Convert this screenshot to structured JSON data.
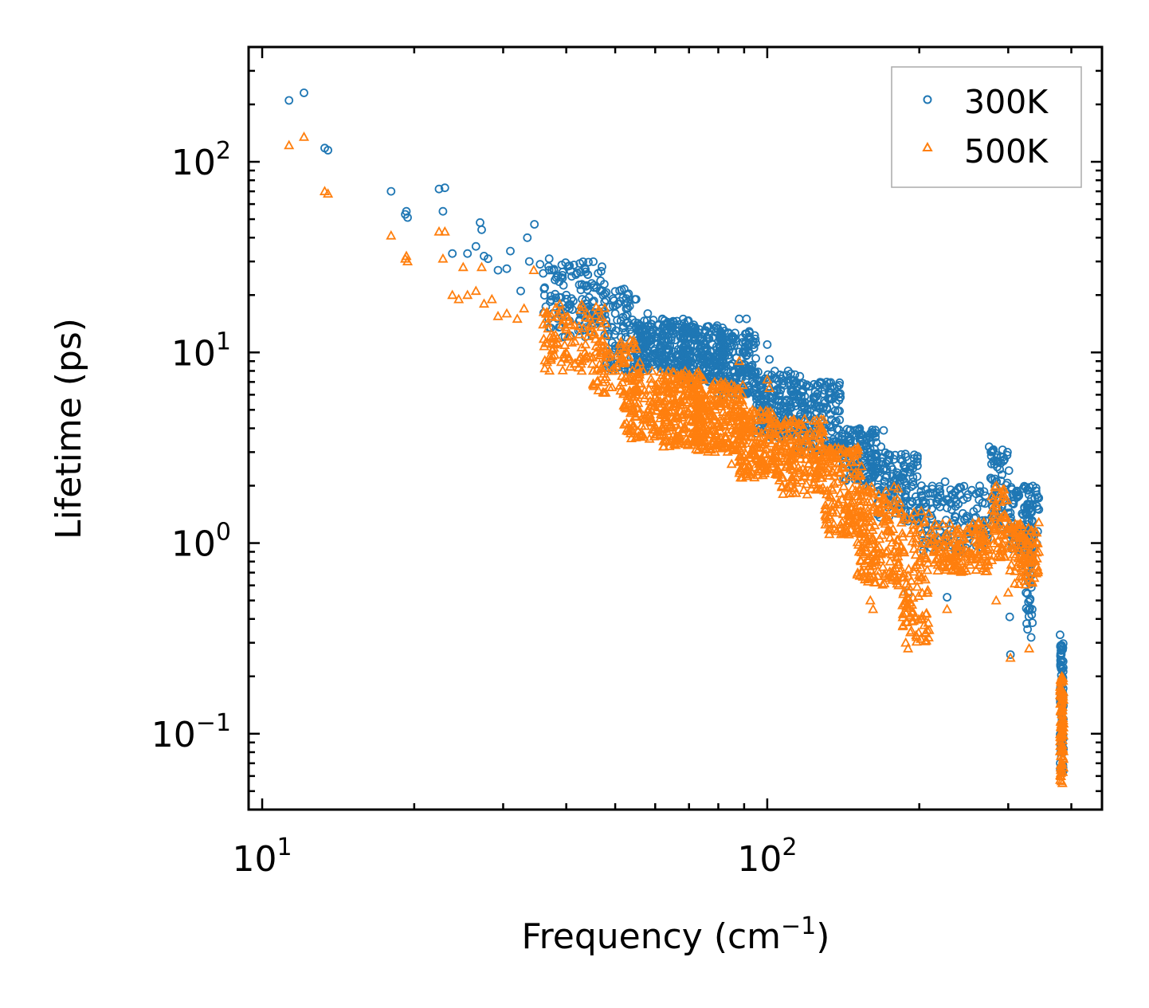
{
  "chart_data": {
    "type": "scatter",
    "xscale": "log",
    "yscale": "log",
    "xlim": [
      9.4,
      460
    ],
    "ylim": [
      0.04,
      400
    ],
    "xlabel": {
      "main": "Frequency (cm",
      "sup": "−1",
      "close": ")"
    },
    "ylabel": "Lifetime (ps)",
    "xticks": [
      {
        "value": 10,
        "base": "10",
        "exp": "1"
      },
      {
        "value": 100,
        "base": "10",
        "exp": "2"
      }
    ],
    "yticks": [
      {
        "value": 0.1,
        "base": "10",
        "exp": "−1"
      },
      {
        "value": 1,
        "base": "10",
        "exp": "0"
      },
      {
        "value": 10,
        "base": "10",
        "exp": "1"
      },
      {
        "value": 100,
        "base": "10",
        "exp": "2"
      }
    ],
    "legend_position": "top-right",
    "series": [
      {
        "name": "300K",
        "marker": "circle",
        "color": "#1f77b4",
        "points": [
          [
            11.3,
            210
          ],
          [
            12.1,
            230
          ],
          [
            13.3,
            118
          ],
          [
            13.5,
            115
          ],
          [
            18.0,
            70
          ],
          [
            19.2,
            53
          ],
          [
            19.3,
            55
          ],
          [
            19.4,
            51
          ],
          [
            22.4,
            72
          ],
          [
            22.8,
            55
          ],
          [
            23.0,
            73
          ],
          [
            23.8,
            33
          ],
          [
            25.5,
            33
          ],
          [
            26.5,
            36
          ],
          [
            27.0,
            48
          ],
          [
            27.2,
            44
          ],
          [
            27.5,
            32
          ],
          [
            28.0,
            31
          ],
          [
            29.3,
            27
          ],
          [
            30.5,
            27.5
          ],
          [
            31.0,
            34
          ],
          [
            32.5,
            21
          ],
          [
            33.5,
            40
          ],
          [
            33.8,
            30
          ],
          [
            34.6,
            47
          ],
          [
            35.5,
            29
          ],
          [
            36.0,
            26
          ],
          [
            37.0,
            31
          ],
          [
            38.0,
            24
          ],
          [
            40.0,
            20
          ],
          [
            43.0,
            19
          ],
          [
            47.0,
            17
          ],
          [
            50.0,
            16
          ],
          [
            52.5,
            18
          ],
          [
            55.0,
            19
          ],
          [
            58.0,
            16
          ],
          [
            62.0,
            15
          ],
          [
            67.0,
            14
          ],
          [
            72.0,
            13
          ],
          [
            78.0,
            12
          ],
          [
            85.0,
            12
          ],
          [
            88.0,
            15
          ],
          [
            91.0,
            15
          ],
          [
            100.0,
            11
          ],
          [
            101.0,
            9.2
          ],
          [
            110.0,
            8
          ],
          [
            116.0,
            7.5
          ],
          [
            120.0,
            5
          ],
          [
            130.0,
            4
          ],
          [
            135.0,
            3.2
          ],
          [
            145.0,
            3.5
          ],
          [
            158.0,
            2.8
          ],
          [
            165.0,
            2.7
          ],
          [
            168.0,
            3.2
          ],
          [
            170.0,
            3.9
          ],
          [
            176.0,
            2.5
          ],
          [
            187.0,
            2.1
          ],
          [
            190.0,
            0.55
          ],
          [
            192.0,
            1.6
          ],
          [
            202.0,
            2.0
          ],
          [
            225.0,
            2.1
          ],
          [
            227.0,
            0.52
          ],
          [
            232.0,
            1.8
          ],
          [
            250.0,
            1.8
          ],
          [
            275.0,
            3.2
          ],
          [
            278.0,
            2.6
          ],
          [
            284.0,
            2.1
          ],
          [
            299.0,
            3.0
          ],
          [
            301.0,
            2.4
          ],
          [
            302.0,
            0.41
          ],
          [
            303.0,
            0.26
          ],
          [
            306.0,
            1.8
          ],
          [
            327.0,
            1.9
          ],
          [
            330.0,
            1.6
          ],
          [
            331.0,
            0.5
          ],
          [
            333.0,
            0.32
          ],
          [
            345.0,
            1.5
          ],
          [
            380.0,
            0.33
          ],
          [
            381.0,
            0.29
          ],
          [
            382.0,
            0.26
          ],
          [
            383.0,
            0.16
          ],
          [
            384.0,
            0.11
          ],
          [
            385.0,
            0.065
          ]
        ],
        "bands": [
          {
            "x_range": [
              36,
              48
            ],
            "y_range": [
              12,
              30
            ],
            "count": 120
          },
          {
            "x_range": [
              45,
              55
            ],
            "y_range": [
              14,
              22
            ],
            "count": 40
          },
          {
            "x_range": [
              48,
              58
            ],
            "y_range": [
              8,
              15
            ],
            "count": 90
          },
          {
            "x_range": [
              55,
              70
            ],
            "y_range": [
              8,
              15
            ],
            "count": 220
          },
          {
            "x_range": [
              68,
              82
            ],
            "y_range": [
              7,
              14
            ],
            "count": 200
          },
          {
            "x_range": [
              80,
              95
            ],
            "y_range": [
              6,
              13
            ],
            "count": 170
          },
          {
            "x_range": [
              95,
              115
            ],
            "y_range": [
              3.5,
              8
            ],
            "count": 170
          },
          {
            "x_range": [
              115,
              140
            ],
            "y_range": [
              3,
              7
            ],
            "count": 160
          },
          {
            "x_range": [
              140,
              165
            ],
            "y_range": [
              2,
              4
            ],
            "count": 130
          },
          {
            "x_range": [
              165,
              200
            ],
            "y_range": [
              1.3,
              3
            ],
            "count": 130
          },
          {
            "x_range": [
              200,
              275
            ],
            "y_range": [
              0.9,
              2
            ],
            "count": 140
          },
          {
            "x_range": [
              276,
              300
            ],
            "y_range": [
              1.2,
              3.2
            ],
            "count": 60
          },
          {
            "x_range": [
              300,
              345
            ],
            "y_range": [
              0.9,
              2
            ],
            "count": 90
          },
          {
            "x_range": [
              325,
              335
            ],
            "y_range": [
              0.35,
              1.6
            ],
            "count": 50
          },
          {
            "x_range": [
              380,
              386
            ],
            "y_range": [
              0.06,
              0.3
            ],
            "count": 90
          }
        ]
      },
      {
        "name": "500K",
        "marker": "triangle",
        "color": "#ff7f0e",
        "points": [
          [
            11.3,
            122
          ],
          [
            12.1,
            135
          ],
          [
            13.3,
            70
          ],
          [
            13.5,
            68
          ],
          [
            18.0,
            41
          ],
          [
            19.2,
            31
          ],
          [
            19.3,
            32
          ],
          [
            19.4,
            30
          ],
          [
            22.4,
            43
          ],
          [
            22.8,
            31
          ],
          [
            23.0,
            43
          ],
          [
            23.8,
            20
          ],
          [
            24.5,
            19
          ],
          [
            25.0,
            28
          ],
          [
            25.5,
            20
          ],
          [
            26.5,
            21
          ],
          [
            27.2,
            28
          ],
          [
            27.5,
            18
          ],
          [
            28.5,
            19
          ],
          [
            29.3,
            15.5
          ],
          [
            30.5,
            16
          ],
          [
            32.0,
            15
          ],
          [
            33.0,
            17
          ],
          [
            34.5,
            27
          ],
          [
            36.0,
            14
          ],
          [
            38.0,
            11
          ],
          [
            40.0,
            10
          ],
          [
            43.0,
            9
          ],
          [
            47.0,
            8
          ],
          [
            52.0,
            9
          ],
          [
            57.0,
            3.6
          ],
          [
            62.0,
            4
          ],
          [
            68.0,
            3.8
          ],
          [
            75.0,
            3.2
          ],
          [
            80.0,
            3.5
          ],
          [
            85.0,
            2.6
          ],
          [
            88.0,
            9
          ],
          [
            91.0,
            2.3
          ],
          [
            100.0,
            7.2
          ],
          [
            101.0,
            6.5
          ],
          [
            108.0,
            2.8
          ],
          [
            116.0,
            2.4
          ],
          [
            120.0,
            1.8
          ],
          [
            130.0,
            1.5
          ],
          [
            140.0,
            1.2
          ],
          [
            152.0,
            0.9
          ],
          [
            154.0,
            0.7
          ],
          [
            160.0,
            0.5
          ],
          [
            162.0,
            0.45
          ],
          [
            175.0,
            0.8
          ],
          [
            182.0,
            0.6
          ],
          [
            188.0,
            0.3
          ],
          [
            190.0,
            0.28
          ],
          [
            192.0,
            0.34
          ],
          [
            200.0,
            0.8
          ],
          [
            227.0,
            0.45
          ],
          [
            233.0,
            0.85
          ],
          [
            250.0,
            0.8
          ],
          [
            262.0,
            0.85
          ],
          [
            280.0,
            1.4
          ],
          [
            284.0,
            0.5
          ],
          [
            300.0,
            0.55
          ],
          [
            303.0,
            0.25
          ],
          [
            330.0,
            0.28
          ],
          [
            335.0,
            0.8
          ],
          [
            345.0,
            0.9
          ],
          [
            383.0,
            0.2
          ],
          [
            384.0,
            0.055
          ]
        ],
        "bands": [
          {
            "x_range": [
              36,
              48
            ],
            "y_range": [
              8,
              18
            ],
            "count": 110
          },
          {
            "x_range": [
              45,
              56
            ],
            "y_range": [
              6,
              12
            ],
            "count": 80
          },
          {
            "x_range": [
              52,
              62
            ],
            "y_range": [
              3.5,
              8
            ],
            "count": 120
          },
          {
            "x_range": [
              62,
              75
            ],
            "y_range": [
              3.2,
              8
            ],
            "count": 220
          },
          {
            "x_range": [
              72,
              90
            ],
            "y_range": [
              3,
              7
            ],
            "count": 220
          },
          {
            "x_range": [
              88,
              105
            ],
            "y_range": [
              2.2,
              5
            ],
            "count": 180
          },
          {
            "x_range": [
              105,
              130
            ],
            "y_range": [
              1.8,
              4.5
            ],
            "count": 180
          },
          {
            "x_range": [
              130,
              155
            ],
            "y_range": [
              1.1,
              3.2
            ],
            "count": 160
          },
          {
            "x_range": [
              150,
              185
            ],
            "y_range": [
              0.6,
              2
            ],
            "count": 180
          },
          {
            "x_range": [
              185,
              210
            ],
            "y_range": [
              0.3,
              1.5
            ],
            "count": 110
          },
          {
            "x_range": [
              210,
              275
            ],
            "y_range": [
              0.7,
              1.3
            ],
            "count": 150
          },
          {
            "x_range": [
              278,
              300
            ],
            "y_range": [
              0.8,
              2
            ],
            "count": 60
          },
          {
            "x_range": [
              300,
              345
            ],
            "y_range": [
              0.6,
              1.3
            ],
            "count": 100
          },
          {
            "x_range": [
              380,
              386
            ],
            "y_range": [
              0.055,
              0.2
            ],
            "count": 100
          }
        ]
      }
    ]
  }
}
